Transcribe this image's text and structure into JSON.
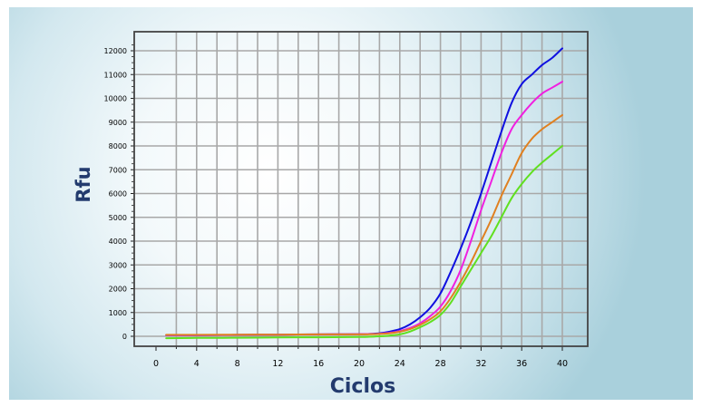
{
  "chart_data": {
    "type": "line",
    "xlabel": "Ciclos",
    "ylabel": "Rfu",
    "xlim": [
      0,
      40
    ],
    "ylim": [
      0,
      12000
    ],
    "xticks": [
      0,
      4,
      8,
      12,
      16,
      20,
      24,
      28,
      32,
      36,
      40
    ],
    "yticks": [
      0,
      1000,
      2000,
      3000,
      4000,
      5000,
      6000,
      7000,
      8000,
      9000,
      10000,
      11000,
      12000
    ],
    "grid": true,
    "series": [
      {
        "color": "#1010e0",
        "x": [
          1,
          4,
          8,
          12,
          16,
          20,
          21,
          22,
          23,
          24,
          25,
          26,
          27,
          28,
          29,
          30,
          31,
          32,
          33,
          34,
          35,
          36,
          37,
          38,
          39,
          40
        ],
        "y": [
          50,
          50,
          60,
          70,
          80,
          90,
          100,
          130,
          200,
          300,
          500,
          800,
          1200,
          1800,
          2700,
          3700,
          4800,
          6000,
          7300,
          8600,
          9800,
          10600,
          11000,
          11400,
          11700,
          12100
        ]
      },
      {
        "color": "#f020e0",
        "x": [
          1,
          4,
          8,
          12,
          16,
          20,
          21,
          22,
          23,
          24,
          25,
          26,
          27,
          28,
          29,
          30,
          31,
          32,
          33,
          34,
          35,
          36,
          37,
          38,
          39,
          40
        ],
        "y": [
          50,
          50,
          60,
          70,
          80,
          90,
          95,
          110,
          150,
          220,
          350,
          550,
          850,
          1250,
          1900,
          2800,
          4000,
          5300,
          6500,
          7700,
          8700,
          9300,
          9800,
          10200,
          10450,
          10700
        ]
      },
      {
        "color": "#e08020",
        "x": [
          1,
          4,
          8,
          12,
          16,
          20,
          21,
          22,
          23,
          24,
          25,
          26,
          27,
          28,
          29,
          30,
          31,
          32,
          33,
          34,
          35,
          36,
          37,
          38,
          39,
          40
        ],
        "y": [
          60,
          60,
          70,
          70,
          80,
          80,
          85,
          100,
          130,
          190,
          300,
          480,
          720,
          1050,
          1600,
          2300,
          3100,
          4000,
          4900,
          5900,
          6800,
          7700,
          8300,
          8700,
          9000,
          9300
        ]
      },
      {
        "color": "#60e020",
        "x": [
          1,
          4,
          8,
          12,
          16,
          20,
          21,
          22,
          23,
          24,
          25,
          26,
          27,
          28,
          29,
          30,
          31,
          32,
          33,
          34,
          35,
          36,
          37,
          38,
          39,
          40
        ],
        "y": [
          -80,
          -70,
          -60,
          -50,
          -40,
          -30,
          -20,
          0,
          30,
          80,
          200,
          380,
          600,
          900,
          1400,
          2100,
          2800,
          3500,
          4200,
          5000,
          5800,
          6400,
          6900,
          7300,
          7650,
          8000
        ]
      }
    ]
  }
}
